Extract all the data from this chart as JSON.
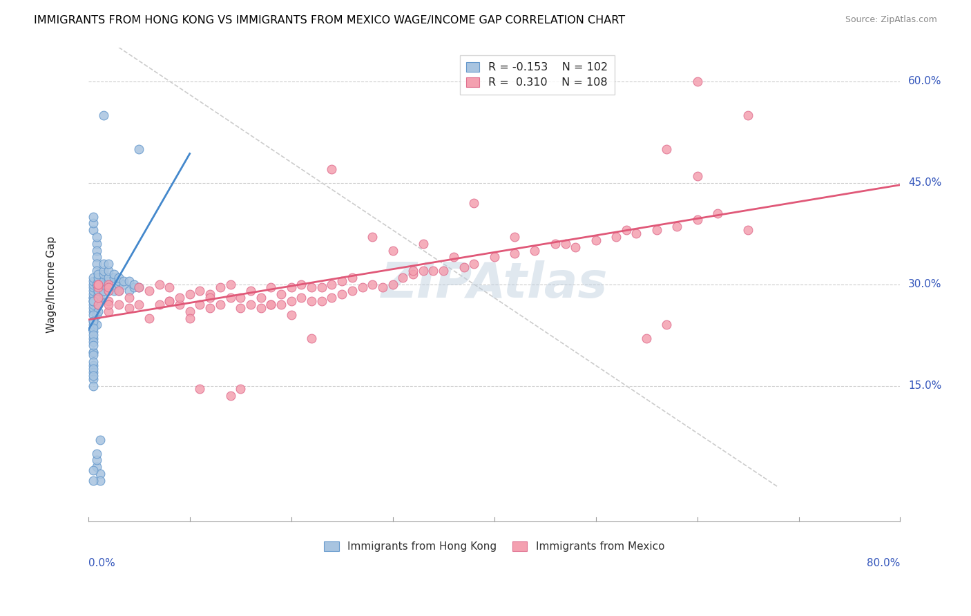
{
  "title": "IMMIGRANTS FROM HONG KONG VS IMMIGRANTS FROM MEXICO WAGE/INCOME GAP CORRELATION CHART",
  "source": "Source: ZipAtlas.com",
  "ylabel": "Wage/Income Gap",
  "yticks": [
    "60.0%",
    "45.0%",
    "30.0%",
    "15.0%"
  ],
  "ytick_vals": [
    0.6,
    0.45,
    0.3,
    0.15
  ],
  "xmin": 0.0,
  "xmax": 0.8,
  "ymin": -0.05,
  "ymax": 0.65,
  "watermark": "ZIPAtlas",
  "legend_hk_r": "-0.153",
  "legend_hk_n": "102",
  "legend_mx_r": "0.310",
  "legend_mx_n": "108",
  "hk_color": "#a8c4e0",
  "mx_color": "#f4a0b0",
  "hk_edge_color": "#6699cc",
  "mx_edge_color": "#e07090",
  "hk_line_color": "#4488cc",
  "mx_line_color": "#e05878",
  "diagonal_color": "#cccccc",
  "hk_scatter_x": [
    0.005,
    0.005,
    0.005,
    0.005,
    0.005,
    0.005,
    0.005,
    0.005,
    0.005,
    0.005,
    0.005,
    0.005,
    0.005,
    0.005,
    0.005,
    0.005,
    0.005,
    0.005,
    0.005,
    0.005,
    0.005,
    0.005,
    0.005,
    0.005,
    0.005,
    0.008,
    0.008,
    0.008,
    0.008,
    0.008,
    0.008,
    0.008,
    0.008,
    0.008,
    0.008,
    0.008,
    0.008,
    0.012,
    0.012,
    0.012,
    0.012,
    0.012,
    0.012,
    0.012,
    0.012,
    0.01,
    0.01,
    0.01,
    0.01,
    0.01,
    0.01,
    0.01,
    0.01,
    0.01,
    0.01,
    0.01,
    0.01,
    0.01,
    0.015,
    0.015,
    0.015,
    0.015,
    0.015,
    0.015,
    0.015,
    0.015,
    0.02,
    0.02,
    0.02,
    0.02,
    0.02,
    0.02,
    0.025,
    0.025,
    0.025,
    0.025,
    0.03,
    0.03,
    0.03,
    0.03,
    0.035,
    0.035,
    0.04,
    0.04,
    0.045,
    0.045,
    0.05,
    0.05,
    0.005,
    0.005,
    0.005,
    0.005,
    0.005,
    0.005,
    0.005,
    0.005,
    0.005,
    0.005,
    0.005,
    0.005,
    0.005,
    0.005
  ],
  "hk_scatter_y": [
    0.26,
    0.265,
    0.27,
    0.275,
    0.28,
    0.28,
    0.285,
    0.29,
    0.295,
    0.3,
    0.305,
    0.31,
    0.22,
    0.23,
    0.24,
    0.245,
    0.2,
    0.18,
    0.17,
    0.16,
    0.15,
    0.2,
    0.38,
    0.39,
    0.4,
    0.36,
    0.37,
    0.35,
    0.34,
    0.33,
    0.32,
    0.3,
    0.255,
    0.24,
    0.03,
    0.04,
    0.05,
    0.275,
    0.28,
    0.29,
    0.3,
    0.31,
    0.07,
    0.02,
    0.01,
    0.26,
    0.27,
    0.28,
    0.285,
    0.29,
    0.295,
    0.3,
    0.305,
    0.31,
    0.315,
    0.27,
    0.28,
    0.29,
    0.285,
    0.29,
    0.3,
    0.305,
    0.315,
    0.32,
    0.33,
    0.55,
    0.29,
    0.3,
    0.305,
    0.31,
    0.32,
    0.33,
    0.29,
    0.3,
    0.31,
    0.315,
    0.29,
    0.3,
    0.305,
    0.31,
    0.3,
    0.305,
    0.29,
    0.305,
    0.295,
    0.3,
    0.295,
    0.5,
    0.275,
    0.275,
    0.255,
    0.245,
    0.235,
    0.225,
    0.215,
    0.21,
    0.195,
    0.185,
    0.175,
    0.165,
    0.025,
    0.01
  ],
  "mx_scatter_x": [
    0.01,
    0.01,
    0.01,
    0.02,
    0.02,
    0.02,
    0.02,
    0.03,
    0.03,
    0.04,
    0.04,
    0.05,
    0.05,
    0.06,
    0.06,
    0.07,
    0.07,
    0.08,
    0.08,
    0.09,
    0.09,
    0.1,
    0.1,
    0.11,
    0.11,
    0.12,
    0.12,
    0.13,
    0.13,
    0.14,
    0.14,
    0.15,
    0.15,
    0.16,
    0.16,
    0.17,
    0.17,
    0.18,
    0.18,
    0.19,
    0.19,
    0.2,
    0.2,
    0.21,
    0.21,
    0.22,
    0.22,
    0.23,
    0.23,
    0.24,
    0.24,
    0.25,
    0.25,
    0.26,
    0.26,
    0.27,
    0.28,
    0.29,
    0.3,
    0.31,
    0.32,
    0.33,
    0.34,
    0.35,
    0.36,
    0.37,
    0.38,
    0.4,
    0.42,
    0.44,
    0.46,
    0.48,
    0.5,
    0.52,
    0.54,
    0.56,
    0.58,
    0.6,
    0.62,
    0.65,
    0.55,
    0.57,
    0.3,
    0.32,
    0.28,
    0.33,
    0.38,
    0.42,
    0.47,
    0.53,
    0.6,
    0.2,
    0.22,
    0.24,
    0.1,
    0.12,
    0.15,
    0.08,
    0.11,
    0.14,
    0.18,
    0.65,
    0.6,
    0.57,
    0.01,
    0.01,
    0.02,
    0.02
  ],
  "mx_scatter_y": [
    0.27,
    0.295,
    0.3,
    0.275,
    0.29,
    0.3,
    0.26,
    0.27,
    0.29,
    0.265,
    0.28,
    0.27,
    0.295,
    0.25,
    0.29,
    0.27,
    0.3,
    0.275,
    0.295,
    0.27,
    0.28,
    0.26,
    0.285,
    0.27,
    0.29,
    0.265,
    0.285,
    0.27,
    0.295,
    0.28,
    0.3,
    0.265,
    0.28,
    0.27,
    0.29,
    0.265,
    0.28,
    0.27,
    0.295,
    0.27,
    0.285,
    0.275,
    0.295,
    0.28,
    0.3,
    0.275,
    0.295,
    0.275,
    0.295,
    0.28,
    0.3,
    0.285,
    0.305,
    0.29,
    0.31,
    0.295,
    0.3,
    0.295,
    0.3,
    0.31,
    0.315,
    0.32,
    0.32,
    0.32,
    0.34,
    0.325,
    0.33,
    0.34,
    0.345,
    0.35,
    0.36,
    0.355,
    0.365,
    0.37,
    0.375,
    0.38,
    0.385,
    0.395,
    0.405,
    0.38,
    0.22,
    0.24,
    0.35,
    0.32,
    0.37,
    0.36,
    0.42,
    0.37,
    0.36,
    0.38,
    0.6,
    0.255,
    0.22,
    0.47,
    0.25,
    0.28,
    0.145,
    0.275,
    0.145,
    0.135,
    0.27,
    0.55,
    0.46,
    0.5,
    0.28,
    0.3,
    0.27,
    0.295
  ]
}
